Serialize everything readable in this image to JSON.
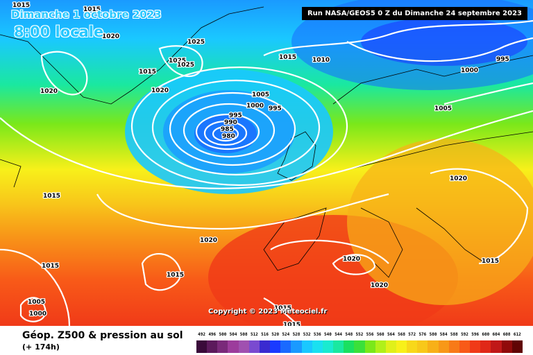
{
  "header": {
    "date": "Dimanche 1 octobre 2023",
    "time": "8:00 locale",
    "run": "Run NASA/GEOS5 0 Z du Dimanche 24 septembre 2023"
  },
  "copyright": "Copyright © 2023 Meteociel.fr",
  "legend": {
    "title": "Géop. Z500 & pression au sol",
    "subtitle": "(+ 174h)",
    "ticks": [
      "492",
      "496",
      "500",
      "504",
      "508",
      "512",
      "516",
      "520",
      "524",
      "528",
      "532",
      "536",
      "540",
      "544",
      "548",
      "552",
      "556",
      "560",
      "564",
      "568",
      "572",
      "576",
      "580",
      "584",
      "588",
      "592",
      "596",
      "600",
      "604",
      "608",
      "612"
    ],
    "colors": [
      "#3a0a3a",
      "#5c1a5c",
      "#7a2a7a",
      "#9c3c9c",
      "#a050b0",
      "#7a4ad0",
      "#3a2ad0",
      "#1a3aff",
      "#1a6aff",
      "#1a9aff",
      "#1ac8ff",
      "#1ae0f0",
      "#1aead0",
      "#1ae8a0",
      "#1ae060",
      "#3ae03a",
      "#7ae81a",
      "#b0f01a",
      "#e0f01a",
      "#f8f01a",
      "#f8d81a",
      "#f8c81a",
      "#f8b018",
      "#f89818",
      "#f87a18",
      "#f85a18",
      "#f03a18",
      "#e02818",
      "#c01818",
      "#900a0a",
      "#600404"
    ]
  },
  "isobars": [
    {
      "value": "1015",
      "x_label": "1015"
    },
    {
      "value": "1020"
    },
    {
      "value": "1025"
    },
    {
      "value": "1010"
    },
    {
      "value": "1005"
    },
    {
      "value": "1000"
    },
    {
      "value": "995"
    },
    {
      "value": "990"
    },
    {
      "value": "985"
    },
    {
      "value": "980"
    }
  ]
}
